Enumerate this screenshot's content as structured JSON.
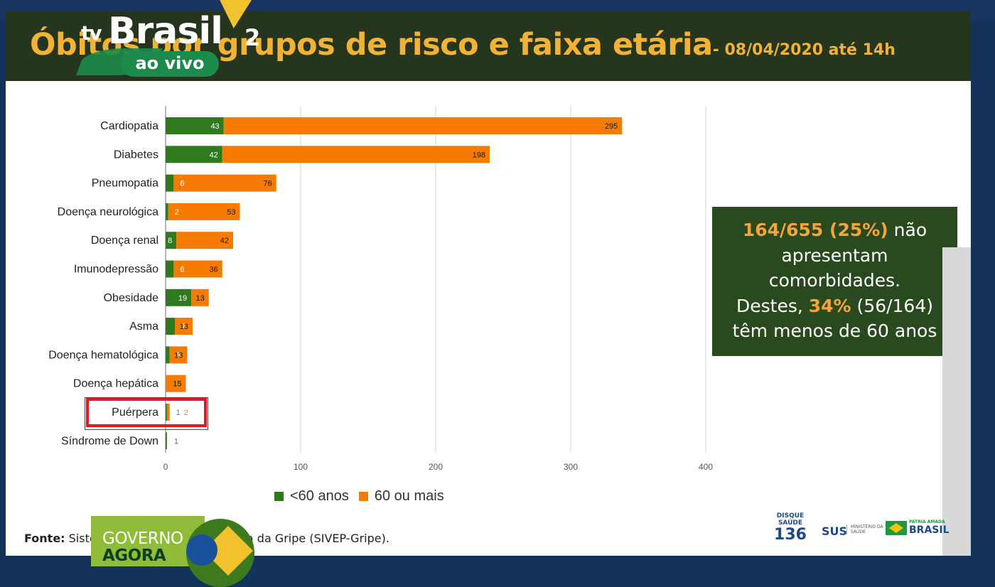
{
  "title": {
    "main": "Óbitos por grupos de risco e faixa etária",
    "date": "- 08/04/2020 até 14h"
  },
  "colors": {
    "under60": "#2f7a1f",
    "over60": "#f57c00",
    "title_bg": "#26351d",
    "title_text": "#f2b235",
    "note_bg": "#284a1e",
    "note_highlight": "#f3a53b",
    "highlight_rect": "#e4171f"
  },
  "chart_data": {
    "type": "bar",
    "orientation": "horizontal",
    "stacked": true,
    "categories": [
      "Cardiopatia",
      "Diabetes",
      "Pneumopatia",
      "Doença neurológica",
      "Doença renal",
      "Imunodepressão",
      "Obesidade",
      "Asma",
      "Doença hematológica",
      "Doença hepática",
      "Puérpera",
      "Síndrome de Down"
    ],
    "series": [
      {
        "name": "<60 anos",
        "values": [
          43,
          42,
          6,
          2,
          8,
          6,
          19,
          7,
          3,
          0,
          1,
          1
        ]
      },
      {
        "name": "60 ou mais",
        "values": [
          295,
          198,
          76,
          53,
          42,
          36,
          13,
          13,
          13,
          15,
          2,
          0
        ]
      }
    ],
    "data_labels": {
      "under60": [
        "43",
        "42",
        "6",
        "2",
        "8",
        "6",
        "19",
        "7",
        "3",
        "",
        "1",
        "1"
      ],
      "over60": [
        "295",
        "198",
        "76",
        "53",
        "42",
        "36",
        "13",
        "13",
        "13",
        "15",
        "2",
        ""
      ]
    },
    "x_ticks": [
      "0",
      "100",
      "200",
      "300",
      "400"
    ],
    "xlim": [
      0,
      400
    ],
    "grid": true,
    "legend_position": "bottom"
  },
  "legend": {
    "under60": "<60 anos",
    "over60": "60 ou mais"
  },
  "note": {
    "line1_hl": "164/655 (25%)",
    "line1_rest": " não",
    "line2": "apresentam",
    "line3": "comorbidades.",
    "line4_pre": "Destes, ",
    "line4_hl": "34%",
    "line4_post": " (56/164)",
    "line5": "têm menos de 60 anos"
  },
  "source": {
    "label": "Fonte:",
    "text_left": " Siste",
    "text_right": "ância da Gripe (SIVEP-Gripe)."
  },
  "footer_logos": {
    "disque_label": "DISQUE SAÚDE",
    "disque_number": "136",
    "sus": "SUS",
    "ministerio": "MINISTÉRIO DA SAÚDE",
    "gov_slogan": "PÁTRIA AMADA",
    "gov_name": "BRASIL"
  },
  "tv_overlay": {
    "prefix": "tv",
    "name": "Brasil",
    "number": "2",
    "live": "ao vivo"
  },
  "ga_overlay": {
    "line1": "GOVERNO",
    "line2": "AGORA"
  }
}
